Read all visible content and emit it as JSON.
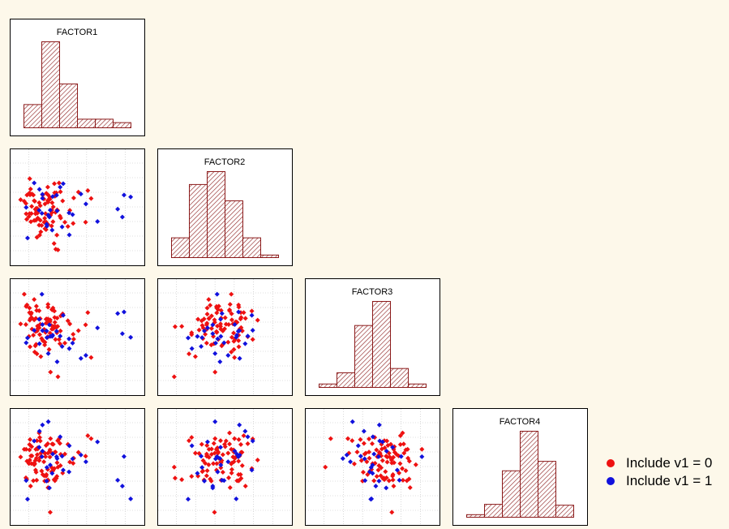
{
  "colors": {
    "group0": "#ee1111",
    "group1": "#1111dd",
    "bar_stroke": "#8b1a1a",
    "panel_bg": "#ffffff",
    "grid": "#c0c0c0",
    "page_bg": "#fdf8ea"
  },
  "legend": [
    {
      "label": "Include v1 = 0",
      "color": "#ee1111"
    },
    {
      "label": "Include v1 = 1",
      "color": "#1111dd"
    }
  ],
  "chart_data": {
    "type": "scatter",
    "variables": [
      "FACTOR1",
      "FACTOR2",
      "FACTOR3",
      "FACTOR4"
    ],
    "grid": true,
    "histograms": {
      "FACTOR1": [
        0.27,
        1.0,
        0.51,
        0.1,
        0.1,
        0.06
      ],
      "FACTOR2": [
        0.23,
        0.85,
        1.0,
        0.66,
        0.23,
        0.03
      ],
      "FACTOR3": [
        0.04,
        0.17,
        0.72,
        1.0,
        0.22,
        0.04
      ],
      "FACTOR4": [
        0.03,
        0.15,
        0.54,
        1.0,
        0.65,
        0.14
      ]
    },
    "groups": [
      {
        "name": "Include v1 = 0",
        "color": "#ee1111"
      },
      {
        "name": "Include v1 = 1",
        "color": "#1111dd"
      }
    ],
    "points": [
      [
        -0.22,
        -0.35,
        -0.03,
        0.34,
        0
      ],
      [
        1.51,
        -0.52,
        0.09,
        0.1,
        0
      ],
      [
        0.51,
        -1.64,
        -1.61,
        -0.27,
        0
      ],
      [
        0.14,
        0.35,
        -0.32,
        -0.35,
        0
      ],
      [
        0.19,
        0.42,
        -0.72,
        0.24,
        0
      ],
      [
        -0.45,
        -0.17,
        0.48,
        -0.15,
        0
      ],
      [
        0.47,
        -1.04,
        -0.17,
        -0.58,
        0
      ],
      [
        -0.54,
        -0.29,
        -0.29,
        -0.15,
        0
      ],
      [
        0.15,
        -0.61,
        0.28,
        -0.7,
        0
      ],
      [
        -0.24,
        0.04,
        -0.11,
        0.15,
        0
      ],
      [
        0.37,
        -1.38,
        0.04,
        -0.69,
        0
      ],
      [
        -0.52,
        -0.17,
        0.64,
        0.31,
        0
      ],
      [
        0.15,
        0.29,
        0.76,
        -0.96,
        0
      ],
      [
        0.4,
        0.53,
        0.17,
        -0.73,
        0
      ],
      [
        0.5,
        -0.04,
        0.04,
        0.62,
        0
      ],
      [
        0.01,
        -0.52,
        -0.06,
        -0.56,
        0
      ],
      [
        -0.26,
        -0.02,
        0.56,
        -0.71,
        0
      ],
      [
        -0.47,
        -0.5,
        0.44,
        0.11,
        0
      ],
      [
        0.55,
        1.07,
        -0.39,
        0.68,
        0
      ],
      [
        -0.17,
        -0.64,
        -0.01,
        -0.05,
        0
      ],
      [
        0.61,
        -0.35,
        0.38,
        0.16,
        0
      ],
      [
        -0.25,
        -1.13,
        -0.86,
        0.62,
        0
      ],
      [
        1.08,
        0.46,
        -0.38,
        0.03,
        0
      ],
      [
        -0.71,
        0.33,
        1.09,
        0.33,
        0
      ],
      [
        -0.28,
        0.04,
        -0.55,
        -0.44,
        0
      ],
      [
        0.06,
        -0.17,
        -0.16,
        0.08,
        0
      ],
      [
        1.25,
        0.7,
        -0.1,
        0.23,
        0
      ],
      [
        -0.35,
        0.35,
        0.25,
        -0.13,
        0
      ],
      [
        0.03,
        -0.36,
        -0.57,
        -0.74,
        0
      ],
      [
        0.45,
        0.67,
        0.0,
        -0.65,
        0
      ],
      [
        -0.61,
        0.58,
        0.74,
        -0.07,
        0
      ],
      [
        -0.11,
        -0.91,
        -0.95,
        0.2,
        0
      ],
      [
        -0.51,
        1.24,
        0.24,
        -0.03,
        0
      ],
      [
        -0.38,
        0.58,
        -0.25,
        -0.73,
        0
      ],
      [
        0.3,
        0.27,
        0.58,
        0.51,
        0
      ],
      [
        0.94,
        -0.04,
        0.12,
        -0.1,
        0
      ],
      [
        0.08,
        -0.51,
        0.14,
        0.46,
        0
      ],
      [
        -0.3,
        -0.18,
        -0.13,
        -0.37,
        0
      ],
      [
        0.24,
        -0.23,
        -1.46,
        0.69,
        0
      ],
      [
        0.08,
        -0.82,
        0.27,
        -0.57,
        0
      ],
      [
        0.14,
        0.9,
        -0.3,
        0.52,
        0
      ],
      [
        -0.15,
        -1.04,
        -0.23,
        0.73,
        0
      ],
      [
        0.68,
        0.34,
        0.45,
        -0.47,
        0
      ],
      [
        -0.5,
        0.59,
        -0.63,
        0.66,
        0
      ],
      [
        0.22,
        0.49,
        0.19,
        0.07,
        0
      ],
      [
        -0.84,
        0.39,
        0.12,
        0.07,
        0
      ],
      [
        0.29,
        -0.03,
        -0.05,
        -0.29,
        0
      ],
      [
        0.58,
        -0.27,
        -0.53,
        0.53,
        0
      ],
      [
        -0.31,
        0.0,
        -0.6,
        -0.05,
        0
      ],
      [
        -0.08,
        -0.65,
        -0.36,
        -0.4,
        0
      ],
      [
        0.34,
        0.1,
        -0.04,
        0.5,
        0
      ],
      [
        0.0,
        0.42,
        -0.45,
        -0.09,
        0
      ],
      [
        0.39,
        0.67,
        0.33,
        0.23,
        0
      ],
      [
        -0.62,
        -0.4,
        0.73,
        -0.67,
        0
      ],
      [
        0.87,
        -0.69,
        0.22,
        0.5,
        0
      ],
      [
        -0.48,
        0.82,
        0.3,
        -0.91,
        0
      ],
      [
        0.04,
        0.22,
        -0.48,
        0.2,
        0
      ],
      [
        0.04,
        -0.78,
        -0.08,
        0.19,
        0
      ],
      [
        0.15,
        0.59,
        0.67,
        -0.73,
        0
      ],
      [
        -0.52,
        0.66,
        0.49,
        0.49,
        0
      ],
      [
        -0.13,
        -0.44,
        0.29,
        0.06,
        0
      ],
      [
        -0.23,
        -0.15,
        0.05,
        0.38,
        0
      ],
      [
        0.09,
        0.65,
        0.28,
        -0.52,
        0
      ],
      [
        0.15,
        -0.24,
        0.17,
        0.2,
        0
      ],
      [
        1.71,
        0.44,
        -0.98,
        0.69,
        0
      ],
      [
        -0.44,
        0.12,
        0.32,
        0.42,
        0
      ],
      [
        -0.65,
        0.24,
        0.1,
        -0.63,
        0
      ],
      [
        0.76,
        -0.52,
        -0.51,
        0.17,
        0
      ],
      [
        0.48,
        -0.02,
        0.31,
        -0.12,
        0
      ],
      [
        0.28,
        -0.67,
        0.07,
        -0.42,
        0
      ],
      [
        -0.13,
        0.15,
        0.11,
        0.61,
        0
      ],
      [
        0.22,
        0.41,
        -0.18,
        0.31,
        0
      ],
      [
        0.43,
        -1.61,
        0.03,
        -0.64,
        0
      ],
      [
        0.6,
        0.71,
        -0.11,
        -0.22,
        0
      ],
      [
        -0.27,
        -0.1,
        0.7,
        0.03,
        0
      ],
      [
        0.33,
        -0.5,
        0.64,
        -0.39,
        0
      ],
      [
        -0.17,
        0.27,
        0.55,
        0.88,
        0
      ],
      [
        0.23,
        -0.25,
        0.25,
        -1.79,
        0
      ],
      [
        1.06,
        -0.57,
        -0.22,
        -0.14,
        0
      ],
      [
        -0.43,
        0.62,
        -0.05,
        0.11,
        0
      ],
      [
        0.38,
        1.04,
        0.54,
        -0.32,
        0
      ],
      [
        -0.29,
        -0.44,
        0.3,
        0.33,
        0
      ],
      [
        -0.64,
        -0.18,
        0.69,
        0.33,
        0
      ],
      [
        -0.33,
        0.33,
        -0.8,
        -0.16,
        0
      ],
      [
        1.59,
        0.76,
        0.49,
        0.79,
        0
      ],
      [
        0.42,
        -0.12,
        -0.39,
        0.24,
        0
      ],
      [
        -0.35,
        -0.45,
        0.92,
        -0.19,
        0
      ],
      [
        0.29,
        -0.13,
        0.59,
        0.2,
        0
      ],
      [
        -0.04,
        0.58,
        -0.43,
        -0.52,
        0
      ],
      [
        -0.05,
        0.61,
        -0.1,
        1.15,
        1
      ],
      [
        1.94,
        -0.49,
        -0.01,
        0.58,
        1
      ],
      [
        0.91,
        -0.14,
        -0.37,
        -0.43,
        1
      ],
      [
        1.34,
        0.62,
        -1.01,
        0.14,
        1
      ],
      [
        0.11,
        -0.68,
        -0.33,
        -0.28,
        1
      ],
      [
        0.32,
        0.52,
        -0.25,
        0.17,
        1
      ],
      [
        2.67,
        0.01,
        0.46,
        -0.71,
        1
      ],
      [
        0.92,
        -1.03,
        -0.69,
        0.45,
        1
      ],
      [
        0.16,
        -0.23,
        -0.85,
        1.26,
        1
      ],
      [
        -0.64,
        0.08,
        -0.5,
        -0.72,
        1
      ],
      [
        0.59,
        0.9,
        -0.28,
        0.75,
        1
      ],
      [
        0.48,
        -0.06,
        -1.12,
        0.02,
        1
      ],
      [
        -0.17,
        -0.04,
        0.27,
        0.4,
        1
      ],
      [
        -0.16,
        0.81,
        -0.53,
        0.94,
        1
      ],
      [
        0.3,
        -0.84,
        -0.29,
        -0.48,
        1
      ],
      [
        1.04,
        -0.21,
        -0.51,
        0.01,
        1
      ],
      [
        0.46,
        0.57,
        -0.12,
        0.08,
        1
      ],
      [
        -0.07,
        -0.16,
        1.09,
        0.08,
        1
      ],
      [
        -0.05,
        0.45,
        0.1,
        0.27,
        1
      ],
      [
        1.52,
        0.22,
        -0.91,
        -0.09,
        1
      ],
      [
        2.9,
        0.58,
        0.51,
        0.09,
        1
      ],
      [
        0.1,
        -0.6,
        -0.11,
        -0.74,
        1
      ],
      [
        0.7,
        1.04,
        0.4,
        -0.37,
        1
      ],
      [
        0.2,
        -0.31,
        0.09,
        -0.97,
        1
      ],
      [
        -0.59,
        -1.16,
        -0.34,
        -1.35,
        1
      ],
      [
        2.84,
        -0.31,
        -0.2,
        -0.91,
        1
      ],
      [
        0.23,
        -0.03,
        -0.29,
        -0.2,
        1
      ],
      [
        -0.35,
        1.07,
        -0.09,
        0.61,
        1
      ],
      [
        3.14,
        0.5,
        -0.32,
        -1.34,
        1
      ],
      [
        0.66,
        -0.71,
        -0.62,
        0.1,
        1
      ]
    ]
  }
}
